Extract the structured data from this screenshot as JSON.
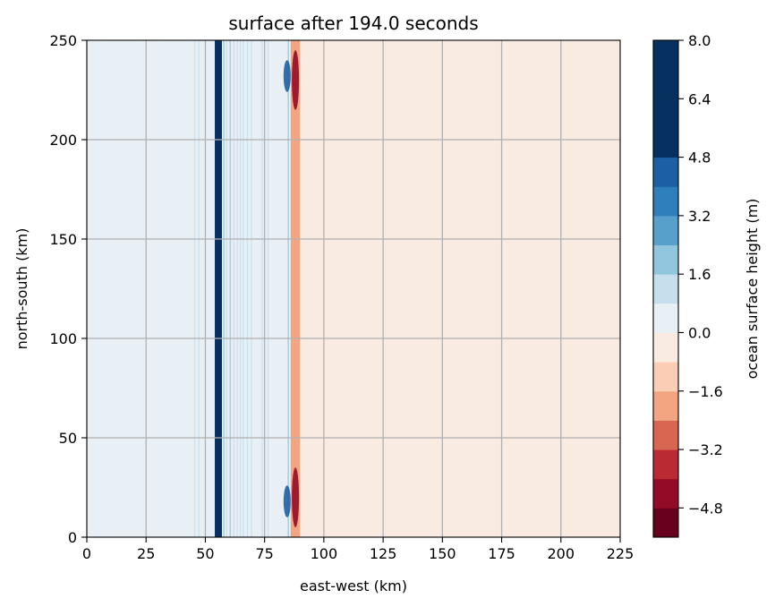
{
  "chart_data": {
    "type": "heatmap",
    "title": "surface after 194.0 seconds",
    "xlabel": "east-west (km)",
    "ylabel": "north-south (km)",
    "xlim": [
      0,
      225
    ],
    "ylim": [
      0,
      250
    ],
    "x_ticks": [
      0,
      25,
      50,
      75,
      100,
      125,
      150,
      175,
      200,
      225
    ],
    "y_ticks": [
      0,
      50,
      100,
      150,
      200,
      250
    ],
    "grid": true,
    "colorbar": {
      "label": "ocean surface height (m)",
      "range": [
        -5.6,
        8.0
      ],
      "tick_values": [
        -4.8,
        -3.2,
        -1.6,
        0.0,
        1.6,
        3.2,
        4.8,
        6.4,
        8.0
      ],
      "tick_labels": [
        "−4.8",
        "−3.2",
        "−1.6",
        "0.0",
        "1.6",
        "3.2",
        "4.8",
        "6.4",
        "8.0"
      ],
      "levels": [
        -5.6,
        -4.8,
        -4.0,
        -3.2,
        -2.4,
        -1.6,
        -0.8,
        0.0,
        0.8,
        1.6,
        2.4,
        3.2,
        4.0,
        4.8,
        5.6,
        6.4,
        7.2,
        8.0
      ],
      "colors": [
        "#67001f",
        "#930b26",
        "#b92a33",
        "#d86651",
        "#f3a582",
        "#fbcdb5",
        "#f9ebe2",
        "#e8f0f5",
        "#c6dfed",
        "#92c5de",
        "#56a0cb",
        "#2f7fbc",
        "#1c60a3",
        "#05305f",
        "#05305f",
        "#05305f",
        "#05305f"
      ]
    },
    "bands": [
      {
        "x": [
          0,
          50
        ],
        "value": 0.3
      },
      {
        "x": [
          50,
          54
        ],
        "value": 0.1
      },
      {
        "x": [
          54,
          57
        ],
        "value": 8.0
      },
      {
        "x": [
          57,
          86
        ],
        "value": 0.1
      },
      {
        "x": [
          86,
          90
        ],
        "value": -2.0
      },
      {
        "x": [
          90,
          225
        ],
        "value": -0.3
      }
    ],
    "lines": [
      {
        "x": 45.5,
        "value": 1.2
      },
      {
        "x": 47.3,
        "value": 1.0
      },
      {
        "x": 57.8,
        "value": 2.0
      },
      {
        "x": 59.0,
        "value": 1.4
      },
      {
        "x": 60.5,
        "value": 1.8
      },
      {
        "x": 62.0,
        "value": 1.2
      },
      {
        "x": 63.5,
        "value": 1.0
      },
      {
        "x": 64.8,
        "value": 1.0
      },
      {
        "x": 66.0,
        "value": 0.9
      },
      {
        "x": 67.8,
        "value": 0.9
      },
      {
        "x": 69.5,
        "value": 0.8
      },
      {
        "x": 74.0,
        "value": 0.8
      },
      {
        "x": 76.5,
        "value": 0.8
      },
      {
        "x": 85.0,
        "value": 2.0
      }
    ],
    "edge_features": [
      {
        "x": 84.5,
        "y_range": [
          10,
          26
        ],
        "value": 4.5
      },
      {
        "x": 84.5,
        "y_range": [
          224,
          240
        ],
        "value": 4.5
      },
      {
        "x": 88.0,
        "y_range": [
          5,
          35
        ],
        "value": -4.5
      },
      {
        "x": 88.0,
        "y_range": [
          215,
          245
        ],
        "value": -4.5
      }
    ]
  }
}
